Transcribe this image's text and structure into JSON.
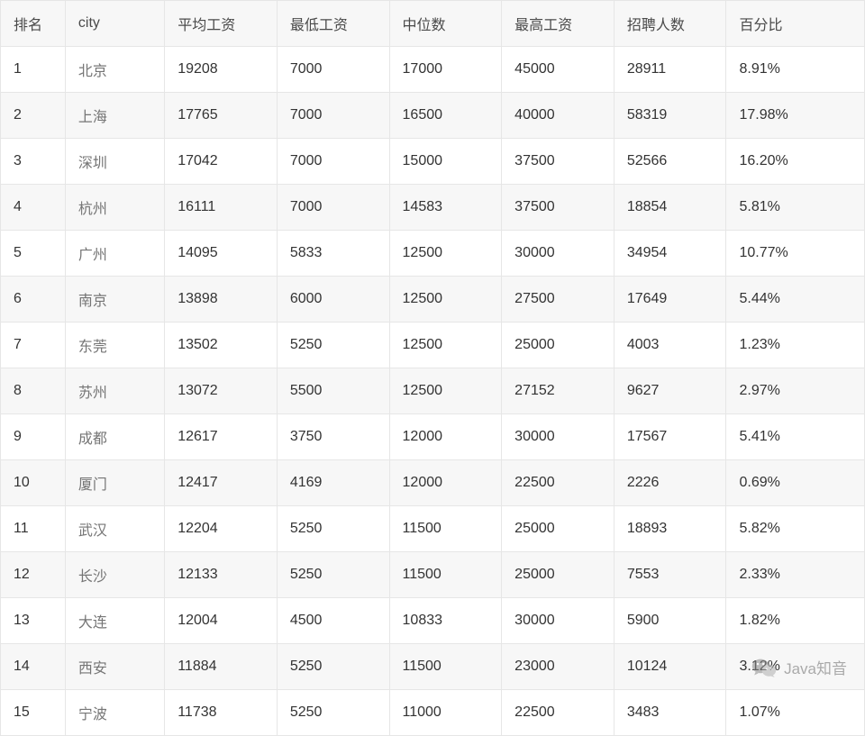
{
  "table": {
    "columns": [
      {
        "key": "rank",
        "label": "排名",
        "width": "7.5%"
      },
      {
        "key": "city",
        "label": "city",
        "width": "11.5%"
      },
      {
        "key": "avg",
        "label": "平均工资",
        "width": "13%"
      },
      {
        "key": "min",
        "label": "最低工资",
        "width": "13%"
      },
      {
        "key": "median",
        "label": "中位数",
        "width": "13%"
      },
      {
        "key": "max",
        "label": "最高工资",
        "width": "13%"
      },
      {
        "key": "count",
        "label": "招聘人数",
        "width": "13%"
      },
      {
        "key": "pct",
        "label": "百分比",
        "width": "16%"
      }
    ],
    "rows": [
      {
        "rank": "1",
        "city": "北京",
        "avg": "19208",
        "min": "7000",
        "median": "17000",
        "max": "45000",
        "count": "28911",
        "pct": "8.91%"
      },
      {
        "rank": "2",
        "city": "上海",
        "avg": "17765",
        "min": "7000",
        "median": "16500",
        "max": "40000",
        "count": "58319",
        "pct": "17.98%"
      },
      {
        "rank": "3",
        "city": "深圳",
        "avg": "17042",
        "min": "7000",
        "median": "15000",
        "max": "37500",
        "count": "52566",
        "pct": "16.20%"
      },
      {
        "rank": "4",
        "city": "杭州",
        "avg": "16111",
        "min": "7000",
        "median": "14583",
        "max": "37500",
        "count": "18854",
        "pct": "5.81%"
      },
      {
        "rank": "5",
        "city": "广州",
        "avg": "14095",
        "min": "5833",
        "median": "12500",
        "max": "30000",
        "count": "34954",
        "pct": "10.77%"
      },
      {
        "rank": "6",
        "city": "南京",
        "avg": "13898",
        "min": "6000",
        "median": "12500",
        "max": "27500",
        "count": "17649",
        "pct": "5.44%"
      },
      {
        "rank": "7",
        "city": "东莞",
        "avg": "13502",
        "min": "5250",
        "median": "12500",
        "max": "25000",
        "count": "4003",
        "pct": "1.23%"
      },
      {
        "rank": "8",
        "city": "苏州",
        "avg": "13072",
        "min": "5500",
        "median": "12500",
        "max": "27152",
        "count": "9627",
        "pct": "2.97%"
      },
      {
        "rank": "9",
        "city": "成都",
        "avg": "12617",
        "min": "3750",
        "median": "12000",
        "max": "30000",
        "count": "17567",
        "pct": "5.41%"
      },
      {
        "rank": "10",
        "city": "厦门",
        "avg": "12417",
        "min": "4169",
        "median": "12000",
        "max": "22500",
        "count": "2226",
        "pct": "0.69%"
      },
      {
        "rank": "11",
        "city": "武汉",
        "avg": "12204",
        "min": "5250",
        "median": "11500",
        "max": "25000",
        "count": "18893",
        "pct": "5.82%"
      },
      {
        "rank": "12",
        "city": "长沙",
        "avg": "12133",
        "min": "5250",
        "median": "11500",
        "max": "25000",
        "count": "7553",
        "pct": "2.33%"
      },
      {
        "rank": "13",
        "city": "大连",
        "avg": "12004",
        "min": "4500",
        "median": "10833",
        "max": "30000",
        "count": "5900",
        "pct": "1.82%"
      },
      {
        "rank": "14",
        "city": "西安",
        "avg": "11884",
        "min": "5250",
        "median": "11500",
        "max": "23000",
        "count": "10124",
        "pct": "3.12%"
      },
      {
        "rank": "15",
        "city": "宁波",
        "avg": "11738",
        "min": "5250",
        "median": "11000",
        "max": "22500",
        "count": "3483",
        "pct": "1.07%"
      }
    ],
    "header_bg": "#f7f7f7",
    "row_even_bg": "#f7f7f7",
    "row_odd_bg": "#ffffff",
    "border_color": "#e6e6e6",
    "text_color": "#333333",
    "city_text_color": "#757575",
    "header_text_color": "#4a4a4a",
    "font_size": 16
  },
  "watermark": {
    "label": "Java知音",
    "icon_name": "wechat-icon",
    "icon_color": "#8a8a8a",
    "text_color": "#6b6b6b"
  }
}
